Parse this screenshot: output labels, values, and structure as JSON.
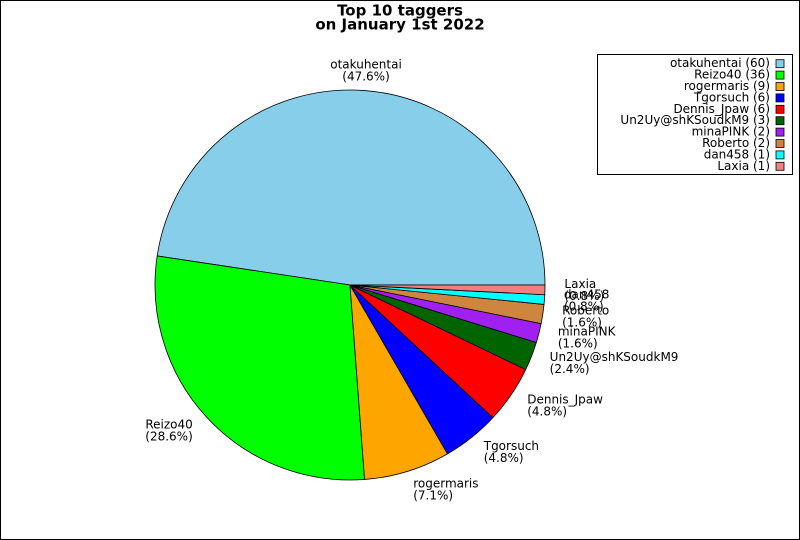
{
  "chart_data": {
    "type": "pie",
    "title": [
      "Top 10 taggers",
      "on January 1st 2022"
    ],
    "categories": [
      "otakuhentai",
      "Reizo40",
      "rogermaris",
      "Tgorsuch",
      "Dennis_Jpaw",
      "Un2Uy@shKSoudkM9",
      "minaPINK",
      "Roberto",
      "dan458",
      "Laxia"
    ],
    "values": [
      60,
      36,
      9,
      6,
      6,
      3,
      2,
      2,
      1,
      1
    ],
    "value_labels": [
      "(47.6%)",
      "(28.6%)",
      "(7.1%)",
      "(4.8%)",
      "(4.8%)",
      "(2.4%)",
      "(1.6%)",
      "(1.6%)",
      "(0.8%)",
      "(0.8%)"
    ],
    "legend_labels": [
      "otakuhentai (60)",
      "Reizo40 (36)",
      "rogermaris (9)",
      "Tgorsuch (6)",
      "Dennis_Jpaw (6)",
      "Un2Uy@shKSoudkM9 (3)",
      "minaPINK (2)",
      "Roberto (2)",
      "dan458 (1)",
      "Laxia (1)"
    ],
    "colors": [
      "#87ceeb",
      "#00ff00",
      "#ffa500",
      "#0000ff",
      "#ff0000",
      "#006400",
      "#a020f0",
      "#cd853f",
      "#00ffff",
      "#f08080"
    ],
    "legend": "upper right"
  }
}
